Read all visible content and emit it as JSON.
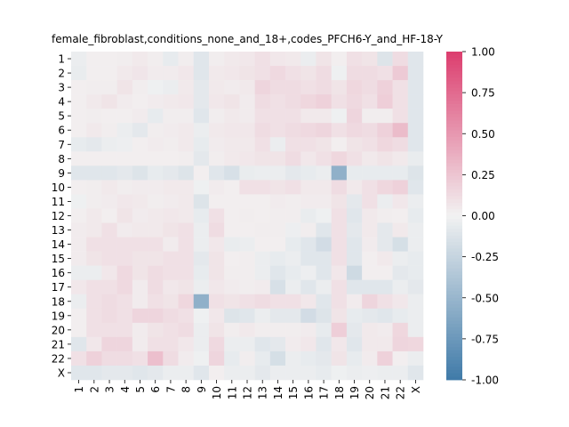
{
  "chart_data": {
    "type": "heatmap",
    "title": "female_fibroblast,conditions_none_and_18+,codes_PFCH6-Y_and_HF-18-Y",
    "xlabel": "",
    "ylabel": "",
    "x_categories": [
      "1",
      "2",
      "3",
      "4",
      "5",
      "6",
      "7",
      "8",
      "9",
      "10",
      "11",
      "12",
      "13",
      "14",
      "15",
      "16",
      "17",
      "18",
      "19",
      "20",
      "21",
      "22",
      "X"
    ],
    "y_categories": [
      "1",
      "2",
      "3",
      "4",
      "5",
      "6",
      "7",
      "8",
      "9",
      "10",
      "11",
      "12",
      "13",
      "14",
      "15",
      "16",
      "17",
      "18",
      "19",
      "20",
      "21",
      "22",
      "X"
    ],
    "values": [
      [
        -0.04,
        0.02,
        0.02,
        0.03,
        0.05,
        0.03,
        -0.06,
        0.03,
        -0.1,
        0.03,
        0.05,
        0.06,
        0.1,
        0.06,
        0.05,
        -0.04,
        0.08,
        0.02,
        0.1,
        0.08,
        -0.12,
        0.12,
        -0.1
      ],
      [
        -0.05,
        0.02,
        0.02,
        0.05,
        0.07,
        0.04,
        0.04,
        0.06,
        -0.1,
        0.05,
        0.06,
        0.08,
        0.1,
        0.14,
        0.1,
        0.08,
        0.12,
        -0.02,
        0.12,
        0.12,
        0.1,
        0.22,
        -0.1
      ],
      [
        0.02,
        0.03,
        0.03,
        0.08,
        0.03,
        -0.02,
        -0.04,
        0.05,
        -0.08,
        0.05,
        0.04,
        0.05,
        0.16,
        0.12,
        0.12,
        0.1,
        0.12,
        0.08,
        0.15,
        0.12,
        0.18,
        0.1,
        -0.1
      ],
      [
        0.02,
        0.05,
        0.08,
        0.04,
        0.02,
        0.04,
        0.05,
        0.06,
        -0.08,
        0.06,
        0.08,
        0.04,
        0.12,
        0.1,
        0.12,
        0.15,
        0.18,
        0.1,
        0.14,
        0.1,
        0.2,
        0.1,
        -0.1
      ],
      [
        0.02,
        0.03,
        0.02,
        0.02,
        0.04,
        -0.06,
        0.03,
        0.03,
        -0.1,
        0.03,
        0.05,
        0.04,
        0.1,
        0.1,
        0.1,
        0.05,
        0.05,
        -0.02,
        0.16,
        0.03,
        0.03,
        0.1,
        -0.1
      ],
      [
        0.02,
        0.05,
        0.03,
        -0.04,
        -0.08,
        0.03,
        0.04,
        0.05,
        -0.04,
        0.05,
        0.06,
        0.06,
        0.12,
        0.1,
        0.12,
        0.14,
        0.16,
        0.1,
        0.14,
        0.12,
        0.18,
        0.3,
        -0.1
      ],
      [
        -0.06,
        -0.08,
        -0.04,
        -0.03,
        0.02,
        0.04,
        0.03,
        0.05,
        -0.06,
        0.04,
        0.05,
        0.05,
        0.1,
        -0.04,
        0.1,
        0.1,
        0.08,
        0.02,
        0.08,
        0.1,
        0.15,
        0.12,
        -0.1
      ],
      [
        0.02,
        0.02,
        0.02,
        0.02,
        0.02,
        0.02,
        0.02,
        0.03,
        -0.08,
        0.03,
        0.05,
        0.06,
        0.08,
        0.08,
        0.12,
        0.06,
        0.1,
        0.15,
        0.1,
        0.05,
        0.08,
        0.05,
        -0.05
      ],
      [
        -0.1,
        -0.1,
        -0.1,
        -0.08,
        -0.12,
        -0.06,
        -0.08,
        -0.12,
        0.02,
        -0.1,
        -0.15,
        -0.05,
        -0.04,
        -0.04,
        -0.08,
        -0.06,
        -0.04,
        -0.55,
        -0.06,
        -0.06,
        -0.06,
        -0.06,
        -0.12
      ],
      [
        0.02,
        0.03,
        0.05,
        0.03,
        0.04,
        0.04,
        0.05,
        0.05,
        -0.02,
        0.04,
        0.02,
        0.1,
        0.1,
        0.08,
        0.1,
        0.05,
        0.05,
        0.12,
        0.05,
        0.1,
        0.15,
        0.18,
        -0.1
      ],
      [
        -0.02,
        0.03,
        0.04,
        0.06,
        0.05,
        0.03,
        0.04,
        0.05,
        -0.12,
        0.02,
        0.02,
        0.02,
        0.02,
        0.04,
        0.03,
        0.04,
        0.04,
        0.08,
        -0.08,
        0.1,
        -0.04,
        0.06,
        -0.04
      ],
      [
        0.02,
        0.05,
        0.02,
        0.08,
        0.04,
        0.05,
        0.06,
        0.05,
        -0.06,
        0.1,
        0.02,
        0.03,
        0.02,
        0.03,
        0.03,
        -0.05,
        -0.02,
        0.1,
        -0.1,
        0.05,
        0.03,
        0.02,
        -0.06
      ],
      [
        0.04,
        0.05,
        0.1,
        0.04,
        0.05,
        0.05,
        0.08,
        0.1,
        -0.04,
        0.12,
        0.02,
        0.02,
        0.03,
        0.03,
        -0.03,
        0.03,
        -0.1,
        0.1,
        -0.08,
        0.05,
        -0.08,
        0.05,
        -0.04
      ],
      [
        0.04,
        0.1,
        0.1,
        0.1,
        0.1,
        0.1,
        0.04,
        0.1,
        -0.04,
        0.06,
        -0.05,
        -0.04,
        0.02,
        0.02,
        -0.06,
        -0.1,
        -0.18,
        0.1,
        -0.1,
        0.04,
        -0.08,
        -0.16,
        -0.04
      ],
      [
        0.04,
        0.08,
        0.1,
        0.1,
        0.08,
        0.08,
        0.1,
        0.1,
        -0.08,
        0.08,
        0.02,
        0.03,
        -0.04,
        -0.06,
        -0.04,
        -0.1,
        -0.1,
        0.1,
        -0.1,
        0.02,
        0.05,
        -0.04,
        -0.06
      ],
      [
        -0.04,
        -0.04,
        0.06,
        0.14,
        0.08,
        0.12,
        0.1,
        0.1,
        -0.06,
        0.08,
        0.03,
        0.03,
        -0.04,
        -0.1,
        -0.06,
        -0.03,
        -0.1,
        0.06,
        -0.2,
        0.02,
        0.02,
        -0.08,
        -0.06
      ],
      [
        0.06,
        0.1,
        0.1,
        0.14,
        0.04,
        0.12,
        0.06,
        0.08,
        -0.04,
        0.06,
        0.04,
        0.03,
        0.04,
        -0.15,
        -0.04,
        -0.1,
        -0.04,
        0.1,
        -0.1,
        -0.1,
        -0.1,
        -0.04,
        -0.08
      ],
      [
        -0.04,
        0.1,
        0.12,
        0.1,
        0.04,
        0.1,
        0.08,
        0.15,
        -0.55,
        0.1,
        0.08,
        0.1,
        0.12,
        0.1,
        0.1,
        0.06,
        -0.1,
        0.1,
        0.04,
        0.16,
        0.1,
        0.06,
        -0.04
      ],
      [
        0.02,
        0.1,
        0.12,
        0.1,
        0.16,
        0.16,
        0.12,
        0.1,
        -0.02,
        0.06,
        -0.12,
        -0.1,
        -0.04,
        -0.08,
        -0.08,
        -0.18,
        -0.12,
        0.08,
        -0.06,
        -0.08,
        -0.1,
        -0.06,
        -0.04
      ],
      [
        0.02,
        0.1,
        0.1,
        0.1,
        0.04,
        0.08,
        0.1,
        0.12,
        -0.04,
        0.08,
        0.03,
        0.05,
        0.03,
        0.03,
        0.03,
        0.04,
        -0.06,
        0.2,
        -0.08,
        0.05,
        0.04,
        0.15,
        -0.04
      ],
      [
        -0.1,
        0.06,
        0.16,
        0.16,
        0.04,
        0.1,
        0.1,
        0.06,
        -0.04,
        0.14,
        -0.04,
        -0.04,
        -0.1,
        -0.08,
        0.04,
        0.06,
        -0.1,
        0.06,
        -0.1,
        0.05,
        0.05,
        0.16,
        0.15
      ],
      [
        0.1,
        0.18,
        0.12,
        0.12,
        0.1,
        0.28,
        0.12,
        0.04,
        -0.02,
        0.16,
        -0.06,
        0.03,
        -0.06,
        -0.16,
        -0.04,
        -0.06,
        -0.08,
        0.08,
        -0.06,
        0.04,
        0.18,
        0.02,
        -0.04
      ],
      [
        -0.1,
        -0.1,
        -0.08,
        -0.08,
        -0.1,
        -0.08,
        -0.04,
        -0.04,
        -0.1,
        0.02,
        -0.04,
        -0.04,
        -0.08,
        -0.04,
        -0.04,
        -0.04,
        -0.06,
        -0.02,
        -0.04,
        -0.03,
        -0.04,
        -0.04,
        -0.1
      ]
    ],
    "colorbar": {
      "vmin": -1.0,
      "vmax": 1.0,
      "ticks": [
        "-1.00",
        "-0.75",
        "-0.50",
        "-0.25",
        "0.00",
        "0.25",
        "0.50",
        "0.75",
        "1.00"
      ],
      "tick_values": [
        -1.0,
        -0.75,
        -0.5,
        -0.25,
        0.0,
        0.25,
        0.5,
        0.75,
        1.0
      ],
      "colors": {
        "negative": "#3f7aa8",
        "center": "#f2f2f2",
        "positive": "#dc3d6e"
      }
    },
    "grid": false,
    "legend": "colorbar-right"
  }
}
